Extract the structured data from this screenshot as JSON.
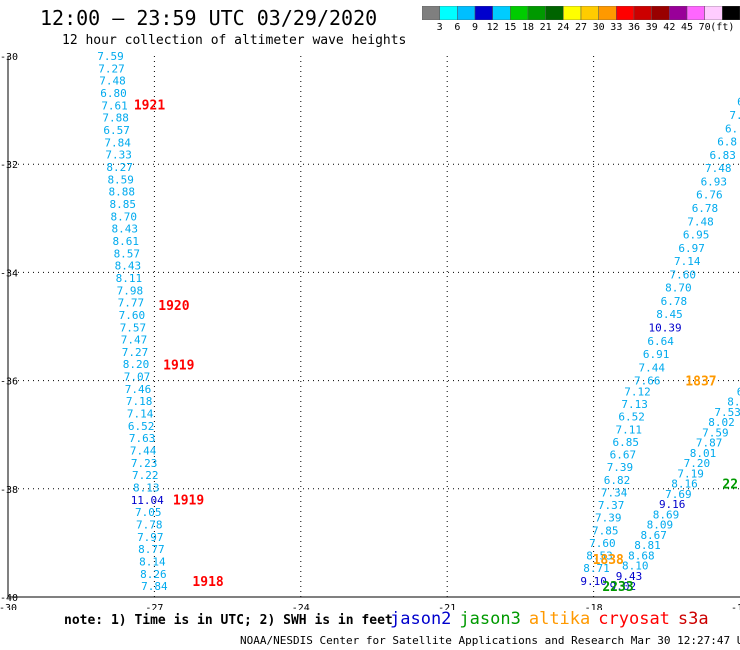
{
  "title": "12:00 – 23:59 UTC 03/29/2020",
  "subtitle": "12 hour collection of altimeter wave heights",
  "colorbar": {
    "unit": "(ft)",
    "labels": [
      "3",
      "6",
      "9",
      "12",
      "15",
      "18",
      "21",
      "24",
      "27",
      "30",
      "33",
      "36",
      "39",
      "42",
      "45",
      "70"
    ],
    "colors": [
      "#7f7f7f",
      "#00ffff",
      "#00bfff",
      "#0000cd",
      "#00ccff",
      "#00cc00",
      "#009900",
      "#006400",
      "#ffff00",
      "#ffcc00",
      "#ff9900",
      "#ff0000",
      "#cc0000",
      "#990000",
      "#990099",
      "#ff66ff",
      "#ffccff",
      "#000000"
    ]
  },
  "note": "note:  1) Time is in UTC;  2) SWH is in feet",
  "legend": [
    {
      "name": "jason2",
      "color": "#0000cc"
    },
    {
      "name": "jason3",
      "color": "#009900"
    },
    {
      "name": "altika",
      "color": "#ff9900"
    },
    {
      "name": "cryosat",
      "color": "#ff0000"
    },
    {
      "name": "s3a",
      "color": "#cc0000"
    }
  ],
  "credit": "NOAA/NESDIS Center for Satellite Applications and Research   Mar 30 12:27:47 UTC 2020",
  "chart_data": {
    "type": "scatter",
    "title": "12:00 – 23:59 UTC 03/29/2020",
    "xlim": [
      -30,
      -15
    ],
    "ylim": [
      -40,
      -30
    ],
    "x_ticks": [
      "-30",
      "-27",
      "-24",
      "-21",
      "-18",
      "-15"
    ],
    "y_ticks": [
      "-30",
      "-32",
      "-34",
      "-36",
      "-38",
      "-40"
    ],
    "grid": true,
    "tracks": [
      {
        "name": "track-left-jason3",
        "color": "#00aaee",
        "lon_start": -27.9,
        "lat_start": -30.0,
        "lon_end": -27.0,
        "lat_end": -39.8,
        "values": [
          "7.59",
          "7.27",
          "7.48",
          "6.80",
          "7.61",
          "7.88",
          "6.57",
          "7.84",
          "7.33",
          "8.27",
          "8.59",
          "8.88",
          "8.85",
          "8.70",
          "8.43",
          "8.61",
          "8.57",
          "8.43",
          "8.11",
          "7.98",
          "7.77",
          "7.60",
          "7.57",
          "7.47",
          "7.27",
          "8.20",
          "7.07",
          "7.46",
          "7.18",
          "7.14",
          "6.52",
          "7.63",
          "7.44",
          "7.23",
          "7.22",
          "8.13",
          "11.04",
          "7.05",
          "7.78",
          "7.97",
          "8.77",
          "8.14",
          "8.26",
          "7.84"
        ],
        "colors": {
          "11.04": "#0000cc"
        }
      },
      {
        "name": "track-right-upper",
        "color": "#00aaee",
        "lon_start": -14.9,
        "lat_start": -30.6,
        "lon_end": -16.9,
        "lat_end": -36.0,
        "values": [
          "6",
          "6",
          "7.",
          "6.",
          "6.8",
          "6.83",
          "7.48",
          "6.93",
          "6.76",
          "6.78",
          "7.48",
          "6.95",
          "6.97",
          "7.14",
          "7.60",
          "8.70",
          "6.78",
          "8.45",
          "10.39",
          "6.64",
          "6.91",
          "7.44",
          "7.66"
        ],
        "colors": {
          "10.39": "#0000cc"
        }
      },
      {
        "name": "track-right-middle",
        "color": "#00aaee",
        "lon_start": -17.1,
        "lat_start": -36.2,
        "lon_end": -18.0,
        "lat_end": -39.7,
        "values": [
          "7.12",
          "7.13",
          "6.52",
          "7.11",
          "6.85",
          "6.67",
          "7.39",
          "6.82",
          "7.34",
          "7.37",
          "7.39",
          "7.85",
          "7.60",
          "8.53",
          "8.71",
          "9.10"
        ],
        "colors": {
          "9.10": "#0000cc"
        }
      },
      {
        "name": "track-right-lower",
        "color": "#00aaee",
        "lon_start": -15.0,
        "lat_start": -36.2,
        "lon_end": -17.4,
        "lat_end": -39.8,
        "values": [
          "6",
          "8.",
          "7.53",
          "8.02",
          "7.59",
          "7.87",
          "8.01",
          "7.20",
          "7.19",
          "8.16",
          "7.69",
          "9.16",
          "8.69",
          "8.09",
          "8.67",
          "8.81",
          "8.68",
          "8.10",
          "9.43",
          "9.02"
        ],
        "colors": {
          "9.16": "#0000cc",
          "9.43": "#0000cc",
          "9.02": "#0000cc"
        }
      }
    ],
    "time_labels": [
      {
        "text": "1921",
        "color": "#ff0000",
        "lon": -27.1,
        "lat": -30.9
      },
      {
        "text": "1920",
        "color": "#ff0000",
        "lon": -26.6,
        "lat": -34.6
      },
      {
        "text": "1919",
        "color": "#ff0000",
        "lon": -26.5,
        "lat": -35.7
      },
      {
        "text": "1919",
        "color": "#ff0000",
        "lon": -26.3,
        "lat": -38.2
      },
      {
        "text": "1918",
        "color": "#ff0000",
        "lon": -25.9,
        "lat": -39.7
      },
      {
        "text": "1837",
        "color": "#ff9900",
        "lon": -15.8,
        "lat": -36.0
      },
      {
        "text": "1838",
        "color": "#ff9900",
        "lon": -17.7,
        "lat": -39.3
      },
      {
        "text": "2233",
        "color": "#009900",
        "lon": -17.5,
        "lat": -39.8
      },
      {
        "text": "22",
        "color": "#009900",
        "lon": -15.2,
        "lat": -37.9
      }
    ]
  }
}
